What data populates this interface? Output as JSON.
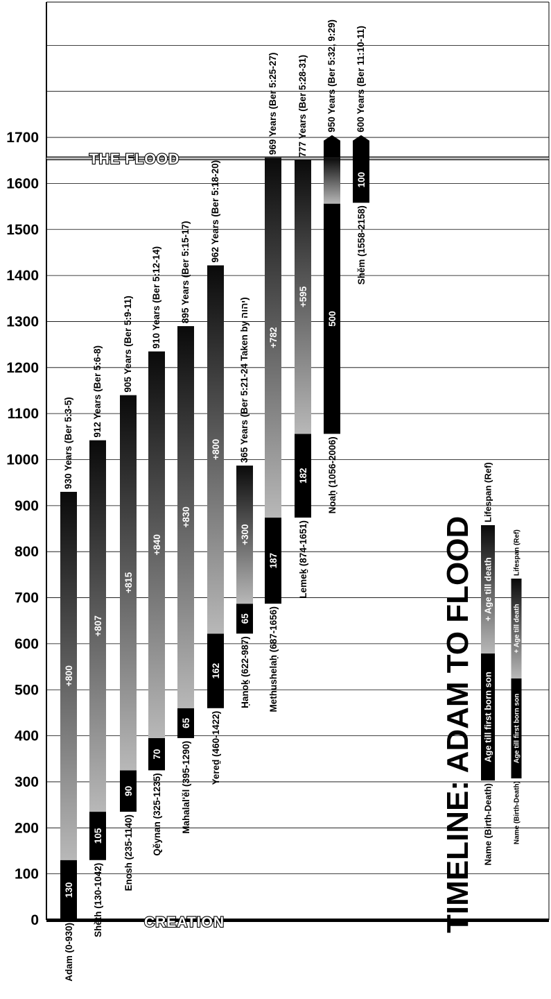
{
  "chart_data": {
    "type": "bar",
    "title": "TIMELINE: ADAM TO FLOOD",
    "ylim": [
      0,
      1900
    ],
    "yticks": [
      0,
      100,
      200,
      300,
      400,
      500,
      600,
      700,
      800,
      900,
      1000,
      1100,
      1200,
      1300,
      1400,
      1500,
      1600,
      1700
    ],
    "grid": true,
    "flood_label": "THE FLOOD",
    "flood_year": 1656,
    "creation_label": "CREATION",
    "series": [
      {
        "name": "Adam (0-930)",
        "birth": 0,
        "first_son": 130,
        "death": 930,
        "first_son_label": "130",
        "rest_label": "+800",
        "lifespan_label": "930 Years (Ber 5:3-5)"
      },
      {
        "name": "Shěth (130-1042)",
        "birth": 130,
        "first_son": 235,
        "death": 1042,
        "first_son_label": "105",
        "rest_label": "+807",
        "lifespan_label": "912 Years (Ber 5:6-8)"
      },
      {
        "name": "Enosh (235-1140)",
        "birth": 235,
        "first_son": 325,
        "death": 1140,
        "first_son_label": "90",
        "rest_label": "+815",
        "lifespan_label": "905 Years (Ber 5:9-11)"
      },
      {
        "name": "Qěynan (325-1235)",
        "birth": 325,
        "first_son": 395,
        "death": 1235,
        "first_son_label": "70",
        "rest_label": "+840",
        "lifespan_label": "910 Years (Ber 5:12-14)"
      },
      {
        "name": "Mahalal'ěl (395-1290)",
        "birth": 395,
        "first_son": 460,
        "death": 1290,
        "first_son_label": "65",
        "rest_label": "+830",
        "lifespan_label": "895 Years (Ber 5:15-17)"
      },
      {
        "name": "Yereḏ (460-1422)",
        "birth": 460,
        "first_son": 622,
        "death": 1422,
        "first_son_label": "162",
        "rest_label": "+800",
        "lifespan_label": "962 Years (Ber 5:18-20)"
      },
      {
        "name": "Ḥanoḵ (622-987)",
        "birth": 622,
        "first_son": 687,
        "death": 987,
        "first_son_label": "65",
        "rest_label": "+300",
        "lifespan_label": "365 Years (Ber 5:21-24 Taken by יהוה)"
      },
      {
        "name": "Methushelaḥ (687-1656)",
        "birth": 687,
        "first_son": 874,
        "death": 1656,
        "first_son_label": "187",
        "rest_label": "+782",
        "lifespan_label": "969 Years (Ber 5:25-27)"
      },
      {
        "name": "Lemeḵ (874-1651)",
        "birth": 874,
        "first_son": 1056,
        "death": 1651,
        "first_son_label": "182",
        "rest_label": "+595",
        "lifespan_label": "777 Years (Ber 5:28-31)"
      },
      {
        "name": "Noaḥ (1056-2006)",
        "birth": 1056,
        "first_son": 1556,
        "death": 2006,
        "first_son_label": "500",
        "rest_label": "",
        "lifespan_label": "950 Years (Ber 5:32, 9:29)"
      },
      {
        "name": "Shěm (1558-2158)",
        "birth": 1558,
        "first_son": 1658,
        "death": 2158,
        "first_son_label": "100",
        "rest_label": "",
        "lifespan_label": "600 Years (Ber 11:10-11)"
      }
    ],
    "legend": {
      "name_label": "Name (Birth-Death)",
      "first_son_label": "Age till first born son",
      "rest_label": "+ Age till death",
      "lifespan_label": "Lifespan (Ref)"
    }
  }
}
